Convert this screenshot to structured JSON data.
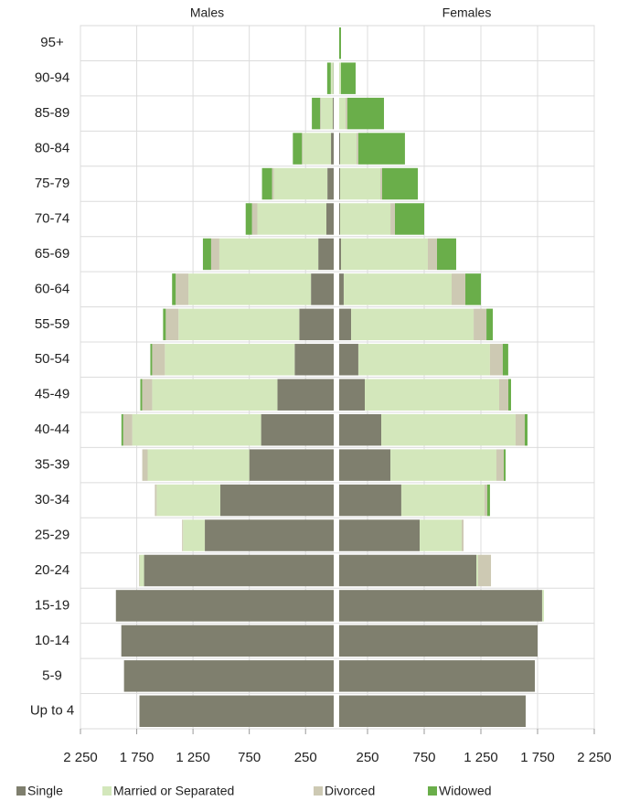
{
  "chart_data": {
    "type": "pyramid",
    "categories": [
      "Up to 4",
      "5-9",
      "10-14",
      "15-19",
      "20-24",
      "25-29",
      "30-34",
      "35-39",
      "40-44",
      "45-49",
      "50-54",
      "55-59",
      "60-64",
      "65-69",
      "70-74",
      "75-79",
      "80-84",
      "85-89",
      "90-94",
      "95+"
    ],
    "legend": [
      {
        "name": "Single",
        "color": "#7f7f6e"
      },
      {
        "name": "Married or Separated",
        "color": "#d3e7bb"
      },
      {
        "name": "Divorced",
        "color": "#cdc9b3"
      },
      {
        "name": "Widowed",
        "color": "#6aae4a"
      }
    ],
    "xlim": [
      0,
      2250
    ],
    "xticks": [
      {
        "value": 2250,
        "label": "2 250"
      },
      {
        "value": 1750,
        "label": "1 750"
      },
      {
        "value": 1250,
        "label": "1 250"
      },
      750,
      250
    ],
    "panels": [
      {
        "title": "Males",
        "side": "left",
        "series": [
          {
            "values": [
              1726,
              1863,
              1887,
              1935,
              1685,
              1145,
              1008,
              750,
              645,
              500,
              347,
              306,
              202,
              137,
              65,
              56,
              24,
              8,
              3,
              0
            ]
          },
          {
            "values": [
              0,
              0,
              0,
              0,
              40,
              194,
              565,
              903,
              1145,
              1113,
              1153,
              1073,
              1089,
              879,
              613,
              476,
              250,
              105,
              20,
              0
            ]
          },
          {
            "values": [
              0,
              0,
              0,
              0,
              5,
              8,
              16,
              48,
              80,
              89,
              113,
              113,
              113,
              73,
              48,
              16,
              8,
              8,
              3,
              0
            ]
          },
          {
            "values": [
              0,
              0,
              0,
              0,
              0,
              0,
              0,
              0,
              16,
              16,
              16,
              24,
              32,
              73,
              56,
              89,
              81,
              73,
              32,
              0
            ]
          }
        ]
      },
      {
        "title": "Females",
        "side": "right",
        "series": [
          {
            "values": [
              1645,
              1726,
              1750,
              1790,
              1210,
              710,
              548,
              452,
              371,
              226,
              169,
              105,
              40,
              16,
              8,
              8,
              8,
              0,
              0,
              0
            ]
          },
          {
            "values": [
              0,
              0,
              0,
              16,
              16,
              371,
              734,
              935,
              1185,
              1185,
              1161,
              1081,
              952,
              766,
              444,
              355,
              145,
              56,
              16,
              0
            ]
          },
          {
            "values": [
              0,
              0,
              0,
              0,
              113,
              16,
              24,
              65,
              81,
              81,
              113,
              113,
              121,
              81,
              40,
              16,
              16,
              16,
              0,
              0
            ]
          },
          {
            "values": [
              0,
              0,
              0,
              0,
              0,
              0,
              24,
              16,
              24,
              24,
              48,
              56,
              137,
              169,
              258,
              315,
              411,
              323,
              129,
              16
            ]
          }
        ]
      }
    ]
  }
}
